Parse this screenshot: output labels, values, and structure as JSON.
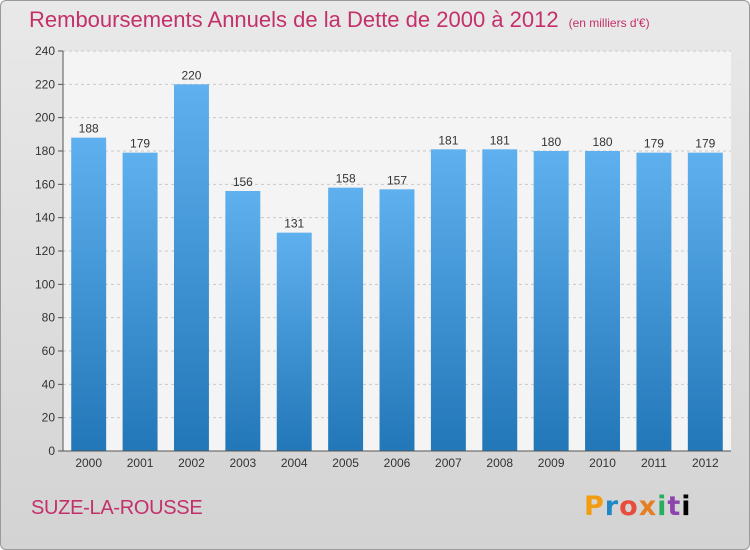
{
  "title": "Remboursements Annuels de la Dette de 2000 à 2012",
  "unit_note": "(en milliers d'€)",
  "commune": "SUZE-LA-ROUSSE",
  "brand": [
    "P",
    "r",
    "o",
    "x",
    "i",
    "t",
    "i"
  ],
  "colors": {
    "bar_top": "#5fb0ee",
    "bar_bottom": "#2277b8",
    "title": "#c4306a"
  },
  "chart_data": {
    "type": "bar",
    "title": "Remboursements Annuels de la Dette de 2000 à 2012",
    "categories": [
      "2000",
      "2001",
      "2002",
      "2003",
      "2004",
      "2005",
      "2006",
      "2007",
      "2008",
      "2009",
      "2010",
      "2011",
      "2012"
    ],
    "values": [
      188,
      179,
      220,
      156,
      131,
      158,
      157,
      181,
      181,
      180,
      180,
      179,
      179
    ],
    "ylim": [
      0,
      240
    ],
    "yticks": [
      0,
      20,
      40,
      60,
      80,
      100,
      120,
      140,
      160,
      180,
      200,
      220,
      240
    ],
    "grid": true,
    "legend": "none"
  }
}
